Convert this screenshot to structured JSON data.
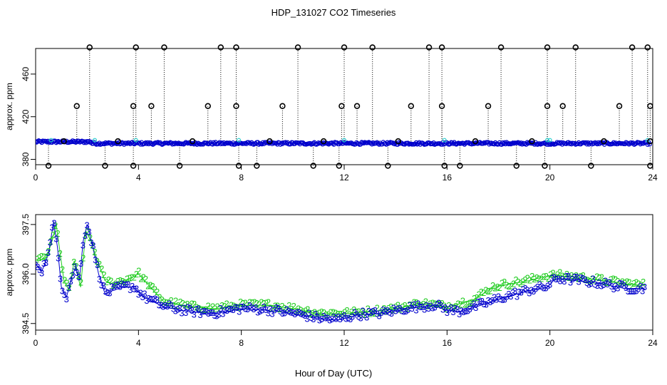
{
  "title": "HDP_131027  CO2 Timeseries",
  "xlabel": "Hour of Day (UTC)",
  "colors": {
    "marker_black": "#000000",
    "series_blue": "#0000cc",
    "series_cyan": "#22cccc",
    "series_green": "#22cc22"
  },
  "chart_data": [
    {
      "type": "scatter",
      "ylabel": "approx. ppm",
      "xlim": [
        0,
        24
      ],
      "ylim": [
        375,
        484
      ],
      "x_ticks": [
        0,
        4,
        8,
        12,
        16,
        20,
        24
      ],
      "x_tick_labels": [
        "0",
        "4",
        "8",
        "12",
        "16",
        "20",
        "24"
      ],
      "y_ticks": [
        380,
        420,
        460
      ],
      "y_tick_labels": [
        "380",
        "420",
        "460"
      ],
      "baseline_ppm": 395,
      "spikes": [
        {
          "x": 2.1,
          "y": 485
        },
        {
          "x": 3.9,
          "y": 485
        },
        {
          "x": 5.0,
          "y": 485
        },
        {
          "x": 7.2,
          "y": 485
        },
        {
          "x": 7.8,
          "y": 485
        },
        {
          "x": 10.2,
          "y": 485
        },
        {
          "x": 12.0,
          "y": 485
        },
        {
          "x": 13.1,
          "y": 485
        },
        {
          "x": 15.3,
          "y": 485
        },
        {
          "x": 15.8,
          "y": 485
        },
        {
          "x": 18.1,
          "y": 485
        },
        {
          "x": 19.9,
          "y": 485
        },
        {
          "x": 21.0,
          "y": 485
        },
        {
          "x": 23.2,
          "y": 485
        },
        {
          "x": 23.8,
          "y": 485
        },
        {
          "x": 1.6,
          "y": 430
        },
        {
          "x": 3.8,
          "y": 430
        },
        {
          "x": 4.5,
          "y": 430
        },
        {
          "x": 6.7,
          "y": 430
        },
        {
          "x": 7.8,
          "y": 430
        },
        {
          "x": 9.6,
          "y": 430
        },
        {
          "x": 11.9,
          "y": 430
        },
        {
          "x": 12.5,
          "y": 430
        },
        {
          "x": 14.6,
          "y": 430
        },
        {
          "x": 15.8,
          "y": 430
        },
        {
          "x": 17.6,
          "y": 430
        },
        {
          "x": 19.9,
          "y": 430
        },
        {
          "x": 20.5,
          "y": 430
        },
        {
          "x": 22.7,
          "y": 430
        },
        {
          "x": 23.9,
          "y": 430
        },
        {
          "x": 0.5,
          "y": 374
        },
        {
          "x": 2.7,
          "y": 374
        },
        {
          "x": 3.8,
          "y": 374
        },
        {
          "x": 5.6,
          "y": 374
        },
        {
          "x": 7.9,
          "y": 374
        },
        {
          "x": 8.6,
          "y": 374
        },
        {
          "x": 10.8,
          "y": 374
        },
        {
          "x": 11.8,
          "y": 374
        },
        {
          "x": 13.7,
          "y": 374
        },
        {
          "x": 15.9,
          "y": 374
        },
        {
          "x": 16.5,
          "y": 374
        },
        {
          "x": 18.7,
          "y": 374
        },
        {
          "x": 19.8,
          "y": 374
        },
        {
          "x": 21.6,
          "y": 374
        },
        {
          "x": 23.9,
          "y": 374
        },
        {
          "x": 1.1,
          "y": 397
        },
        {
          "x": 3.2,
          "y": 397
        },
        {
          "x": 6.1,
          "y": 397
        },
        {
          "x": 9.1,
          "y": 397
        },
        {
          "x": 11.2,
          "y": 397
        },
        {
          "x": 14.1,
          "y": 397
        },
        {
          "x": 17.1,
          "y": 397
        },
        {
          "x": 19.3,
          "y": 397
        },
        {
          "x": 22.1,
          "y": 397
        },
        {
          "x": 23.9,
          "y": 397
        }
      ]
    },
    {
      "type": "scatter",
      "ylabel": "approx. ppm",
      "xlim": [
        0,
        24
      ],
      "ylim": [
        394.3,
        397.8
      ],
      "x_ticks": [
        0,
        4,
        8,
        12,
        16,
        20,
        24
      ],
      "x_tick_labels": [
        "0",
        "4",
        "8",
        "12",
        "16",
        "20",
        "24"
      ],
      "y_ticks": [
        394.5,
        396.0,
        397.5
      ],
      "y_tick_labels": [
        "394.5",
        "396.0",
        "397.5"
      ],
      "marker_3": "3",
      "marker_2": "2",
      "series": [
        {
          "marker": "3",
          "x": [
            0.0,
            0.25,
            0.5,
            0.7,
            0.85,
            1.0,
            1.2,
            1.4,
            1.55,
            1.7,
            1.85,
            2.0,
            2.2,
            2.45,
            2.7,
            3.0,
            3.4,
            3.8,
            4.2,
            5.0,
            6.0,
            7.0,
            8.0,
            9.0,
            10.0,
            11.0,
            11.7,
            12.5,
            13.5,
            14.5,
            15.5,
            16.0,
            16.5,
            17.5,
            18.5,
            19.0,
            19.5,
            19.9,
            20.2,
            21.0,
            21.5,
            22.0,
            23.0,
            23.7
          ],
          "y": [
            396.3,
            396.1,
            396.6,
            397.6,
            396.8,
            395.6,
            395.3,
            395.9,
            396.2,
            395.8,
            397.0,
            397.5,
            396.9,
            396.0,
            395.4,
            395.5,
            395.6,
            395.6,
            395.3,
            395.0,
            394.85,
            394.8,
            394.95,
            394.9,
            394.8,
            394.65,
            394.6,
            394.75,
            394.8,
            394.95,
            395.05,
            394.9,
            394.85,
            395.1,
            395.35,
            395.45,
            395.55,
            395.6,
            395.85,
            395.8,
            395.75,
            395.7,
            395.55,
            395.55
          ]
        },
        {
          "marker": "2",
          "x": [
            0.1,
            0.4,
            0.6,
            0.8,
            1.1,
            1.3,
            1.5,
            1.75,
            1.95,
            2.15,
            2.4,
            2.7,
            3.0,
            3.5,
            4.0,
            5.0,
            6.0,
            7.0,
            8.0,
            9.0,
            10.0,
            11.0,
            12.0,
            13.0,
            14.0,
            15.0,
            16.0,
            17.0,
            17.8,
            18.5,
            19.2,
            19.7,
            20.3,
            21.0,
            21.5,
            22.0,
            23.0,
            23.7
          ],
          "y": [
            396.4,
            396.5,
            396.9,
            397.5,
            395.8,
            395.5,
            396.4,
            395.6,
            397.3,
            397.0,
            396.4,
            395.8,
            395.7,
            395.8,
            396.0,
            395.15,
            395.0,
            394.95,
            395.05,
            395.05,
            394.95,
            394.8,
            394.8,
            394.85,
            394.95,
            395.1,
            395.0,
            395.2,
            395.6,
            395.7,
            395.8,
            395.9,
            395.95,
            395.9,
            395.85,
            395.8,
            395.7,
            395.65
          ]
        }
      ]
    }
  ]
}
